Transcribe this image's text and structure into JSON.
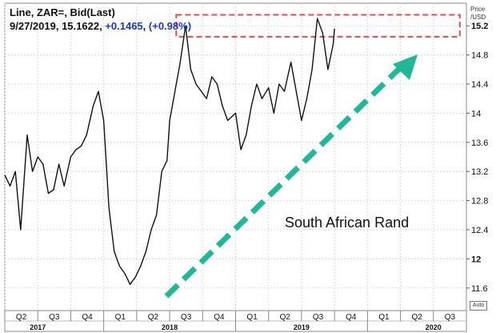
{
  "header": {
    "line1": "Line, ZAR=, Bid(Last)",
    "line2_date": "9/27/2019",
    "line2_value": "15.1622",
    "line2_change": "+0.1465",
    "line2_pct": "(+0.98%)"
  },
  "axis": {
    "unit_title": "Price",
    "unit_sub": "/USD",
    "auto_label": "Auto"
  },
  "annotation": {
    "text": "South African Rand",
    "arrow_color": "#20b997",
    "highlight_color": "#ee4a4a"
  },
  "colors": {
    "line": "#111111",
    "grid": "#d9d9d9",
    "change": "#1a39c8"
  },
  "chart_data": {
    "type": "line",
    "title": "Line, ZAR=, Bid(Last)",
    "ylabel": "Price /USD",
    "ylim": [
      11.4,
      15.4
    ],
    "yticks": [
      11.6,
      12,
      12.4,
      12.8,
      13.2,
      13.6,
      14,
      14.4,
      14.8,
      15.2
    ],
    "ytick_labels": [
      "11.6",
      "12",
      "12.4",
      "12.8",
      "13.2",
      "13.6",
      "14",
      "14.4",
      "14.8",
      "15.2"
    ],
    "grid": true,
    "x_quarters": [
      "Q2",
      "Q3",
      "Q4",
      "Q1",
      "Q2",
      "Q3",
      "Q4",
      "Q1",
      "Q2",
      "Q3",
      "Q4",
      "Q1",
      "Q2",
      "Q3"
    ],
    "x_years": [
      "2017",
      "2018",
      "2019",
      "2020"
    ],
    "x_range_months": [
      2017.25,
      2020.75
    ],
    "series": [
      {
        "values": [
          [
            2017.25,
            13.15
          ],
          [
            2017.29,
            13.0
          ],
          [
            2017.33,
            13.2
          ],
          [
            2017.37,
            12.4
          ],
          [
            2017.42,
            13.7
          ],
          [
            2017.46,
            13.2
          ],
          [
            2017.5,
            13.4
          ],
          [
            2017.54,
            13.3
          ],
          [
            2017.58,
            12.9
          ],
          [
            2017.62,
            12.95
          ],
          [
            2017.66,
            13.3
          ],
          [
            2017.7,
            13.0
          ],
          [
            2017.75,
            13.4
          ],
          [
            2017.79,
            13.5
          ],
          [
            2017.83,
            13.55
          ],
          [
            2017.87,
            13.7
          ],
          [
            2017.92,
            14.1
          ],
          [
            2017.96,
            14.3
          ],
          [
            2018.0,
            13.9
          ],
          [
            2018.04,
            12.7
          ],
          [
            2018.08,
            12.1
          ],
          [
            2018.12,
            11.9
          ],
          [
            2018.16,
            11.8
          ],
          [
            2018.2,
            11.65
          ],
          [
            2018.24,
            11.75
          ],
          [
            2018.28,
            11.9
          ],
          [
            2018.32,
            12.1
          ],
          [
            2018.36,
            12.4
          ],
          [
            2018.4,
            12.6
          ],
          [
            2018.44,
            13.2
          ],
          [
            2018.48,
            13.35
          ],
          [
            2018.5,
            13.9
          ],
          [
            2018.54,
            14.3
          ],
          [
            2018.58,
            14.7
          ],
          [
            2018.62,
            15.2
          ],
          [
            2018.66,
            14.6
          ],
          [
            2018.7,
            14.4
          ],
          [
            2018.74,
            14.3
          ],
          [
            2018.78,
            14.2
          ],
          [
            2018.82,
            14.5
          ],
          [
            2018.86,
            14.4
          ],
          [
            2018.9,
            14.1
          ],
          [
            2018.94,
            13.9
          ],
          [
            2019.0,
            14.0
          ],
          [
            2019.04,
            13.5
          ],
          [
            2019.08,
            13.7
          ],
          [
            2019.12,
            14.1
          ],
          [
            2019.16,
            14.4
          ],
          [
            2019.2,
            14.2
          ],
          [
            2019.25,
            14.35
          ],
          [
            2019.29,
            14.0
          ],
          [
            2019.33,
            14.4
          ],
          [
            2019.37,
            14.3
          ],
          [
            2019.42,
            14.7
          ],
          [
            2019.46,
            14.3
          ],
          [
            2019.5,
            13.9
          ],
          [
            2019.54,
            14.2
          ],
          [
            2019.58,
            14.6
          ],
          [
            2019.62,
            15.3
          ],
          [
            2019.66,
            15.1
          ],
          [
            2019.7,
            14.6
          ],
          [
            2019.74,
            14.95
          ],
          [
            2019.75,
            15.16
          ]
        ]
      }
    ]
  }
}
